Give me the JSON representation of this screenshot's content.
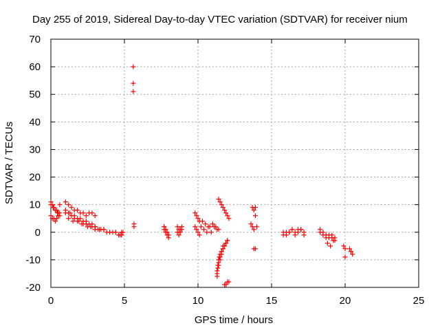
{
  "chart_data": {
    "type": "scatter",
    "title": "Day 255 of 2019, Sidereal Day-to-day VTEC variation (SDTVAR) for receiver nium",
    "xlabel": "GPS time / hours",
    "ylabel": "SDTVAR / TECUs",
    "xlim": [
      0,
      25
    ],
    "ylim": [
      -20,
      70
    ],
    "xticks": [
      0,
      5,
      10,
      15,
      20,
      25
    ],
    "yticks": [
      -20,
      -10,
      0,
      10,
      20,
      30,
      40,
      50,
      60,
      70
    ],
    "grid": true,
    "marker": "+",
    "color": "#ff0000",
    "series": [
      {
        "name": "SDTVAR",
        "x": [
          0.0,
          0.1,
          0.2,
          0.3,
          0.4,
          0.5,
          0.6,
          0.0,
          0.1,
          0.2,
          0.3,
          0.4,
          0.5,
          0.6,
          0.0,
          0.15,
          0.3,
          0.45,
          0.6,
          1.0,
          1.2,
          1.4,
          1.6,
          1.8,
          2.0,
          2.2,
          2.4,
          1.0,
          1.2,
          1.4,
          1.6,
          1.8,
          2.0,
          2.2,
          2.4,
          2.6,
          2.8,
          3.0,
          1.0,
          1.3,
          1.6,
          1.9,
          2.2,
          2.5,
          2.8,
          3.0,
          3.3,
          3.6,
          4.0,
          4.4,
          4.8,
          1.2,
          1.5,
          1.8,
          2.1,
          2.4,
          2.7,
          3.0,
          3.2,
          3.4,
          3.6,
          3.8,
          4.0,
          4.2,
          4.4,
          4.6,
          4.8,
          2.6,
          2.8,
          3.0,
          4.7,
          4.8,
          4.9,
          5.6,
          5.6,
          5.6,
          5.65,
          5.65,
          7.7,
          7.8,
          7.9,
          8.0,
          7.7,
          7.8,
          7.9,
          8.0,
          7.7,
          7.8,
          7.9,
          8.0,
          8.6,
          8.7,
          8.8,
          8.9,
          8.6,
          8.7,
          8.8,
          8.9,
          9.8,
          9.9,
          10.0,
          10.1,
          9.8,
          9.9,
          10.0,
          10.1,
          10.2,
          10.4,
          10.6,
          10.8,
          10.3,
          10.5,
          10.7,
          11.0,
          11.2,
          11.4,
          10.9,
          11.1,
          11.3,
          11.3,
          11.35,
          11.4,
          11.45,
          11.5,
          11.6,
          11.7,
          11.8,
          11.9,
          12.0,
          11.3,
          11.4,
          11.5,
          11.6,
          11.7,
          11.8,
          11.9,
          12.0,
          11.3,
          11.35,
          11.4,
          11.5,
          11.6,
          11.7,
          11.4,
          11.5,
          11.6,
          11.7,
          11.8,
          11.9,
          12.0,
          12.1,
          11.8,
          11.9,
          12.0,
          12.1,
          13.6,
          13.7,
          13.8,
          13.9,
          13.7,
          13.8,
          13.9,
          14.0,
          13.8,
          13.9,
          15.8,
          16.0,
          16.2,
          16.4,
          16.6,
          16.8,
          17.0,
          17.2,
          15.8,
          16.0,
          16.2,
          16.4,
          16.6,
          16.8,
          17.0,
          17.2,
          18.3,
          18.5,
          18.7,
          18.9,
          19.1,
          19.3,
          18.3,
          18.5,
          18.7,
          18.9,
          19.1,
          19.3,
          18.8,
          19.0,
          19.2,
          19.9,
          20.0,
          20.0,
          20.3,
          20.4,
          20.5,
          20.4
        ],
        "y": [
          11,
          10,
          9,
          8,
          8,
          7,
          7,
          6,
          5,
          5,
          4,
          5,
          6,
          6,
          10,
          9,
          8,
          7,
          10,
          11,
          10,
          9,
          8,
          8,
          7,
          7,
          6,
          7,
          7,
          6,
          6,
          5,
          5,
          4,
          4,
          3,
          3,
          2,
          8,
          7,
          5,
          4,
          3,
          2,
          2,
          1,
          1,
          1,
          0,
          0,
          0,
          5,
          4,
          4,
          3,
          3,
          2,
          2,
          1,
          1,
          1,
          0,
          0,
          0,
          0,
          -1,
          -1,
          7,
          7,
          6,
          -1,
          -1,
          0,
          60,
          54,
          51,
          3,
          2,
          2,
          1,
          0,
          -1,
          1,
          0,
          -1,
          -2,
          2,
          1,
          0,
          -1,
          2,
          1,
          0,
          1,
          0,
          -1,
          1,
          2,
          7,
          6,
          5,
          4,
          2,
          1,
          0,
          -1,
          2,
          1,
          0,
          2,
          4,
          3,
          2,
          3,
          2,
          1,
          0,
          2,
          1,
          -14,
          -12,
          -10,
          -9,
          -8,
          -7,
          -6,
          -5,
          -4,
          -3,
          -16,
          -12,
          -10,
          -8,
          -6,
          -5,
          -4,
          -3,
          -15,
          -13,
          -11,
          -9,
          -7,
          -5,
          12,
          11,
          10,
          9,
          8,
          7,
          6,
          5,
          -19,
          -19,
          -18,
          -18,
          3,
          2,
          1,
          -6,
          9,
          8,
          6,
          2,
          -6,
          9,
          0,
          -1,
          0,
          1,
          -1,
          0,
          1,
          0,
          -1,
          0,
          0,
          1,
          0,
          1,
          1,
          -1,
          0,
          -1,
          -2,
          -1,
          -2,
          -3,
          1,
          0,
          -1,
          -2,
          -1,
          -2,
          -4,
          -5,
          -3,
          -5,
          -6,
          -9,
          -6,
          -7,
          -8,
          -7
        ]
      }
    ]
  }
}
